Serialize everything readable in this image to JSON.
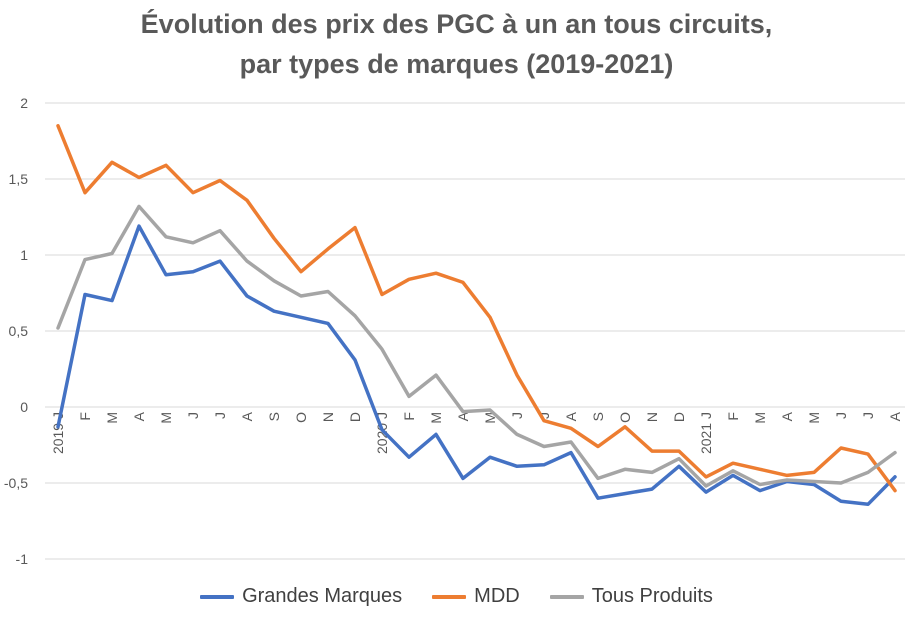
{
  "chart_data": {
    "type": "line",
    "title_line1": "Évolution des prix des PGC à un an tous circuits,",
    "title_line2": "par types de marques (2019-2021)",
    "categories": [
      "2019 J",
      "F",
      "M",
      "A",
      "M",
      "J",
      "J",
      "A",
      "S",
      "O",
      "N",
      "D",
      "2020 J",
      "F",
      "M",
      "A",
      "M",
      "J",
      "J",
      "A",
      "S",
      "O",
      "N",
      "D",
      "2021 J",
      "F",
      "M",
      "A",
      "M",
      "J",
      "J",
      "A"
    ],
    "ylim": [
      -1,
      2
    ],
    "yticks": [
      "-1",
      "-0,5",
      "0",
      "0,5",
      "1",
      "1,5",
      "2"
    ],
    "ytick_values": [
      -1,
      -0.5,
      0,
      0.5,
      1,
      1.5,
      2
    ],
    "grid": true,
    "legend_position": "bottom",
    "series": [
      {
        "name": "Grandes Marques",
        "color": "#4472C4",
        "values": [
          -0.13,
          0.74,
          0.7,
          1.19,
          0.87,
          0.89,
          0.96,
          0.73,
          0.63,
          0.59,
          0.55,
          0.31,
          -0.15,
          -0.33,
          -0.18,
          -0.47,
          -0.33,
          -0.39,
          -0.38,
          -0.3,
          -0.6,
          -0.57,
          -0.54,
          -0.39,
          -0.56,
          -0.45,
          -0.55,
          -0.49,
          -0.51,
          -0.62,
          -0.64,
          -0.46
        ]
      },
      {
        "name": "MDD",
        "color": "#ED7D31",
        "values": [
          1.85,
          1.41,
          1.61,
          1.51,
          1.59,
          1.41,
          1.49,
          1.36,
          1.11,
          0.89,
          1.04,
          1.18,
          0.74,
          0.84,
          0.88,
          0.82,
          0.59,
          0.21,
          -0.09,
          -0.14,
          -0.26,
          -0.13,
          -0.29,
          -0.29,
          -0.46,
          -0.37,
          -0.41,
          -0.45,
          -0.43,
          -0.27,
          -0.31,
          -0.55
        ]
      },
      {
        "name": "Tous Produits",
        "color": "#A5A5A5",
        "values": [
          0.52,
          0.97,
          1.01,
          1.32,
          1.12,
          1.08,
          1.16,
          0.96,
          0.83,
          0.73,
          0.76,
          0.6,
          0.38,
          0.07,
          0.21,
          -0.03,
          -0.02,
          -0.18,
          -0.26,
          -0.23,
          -0.47,
          -0.41,
          -0.43,
          -0.34,
          -0.52,
          -0.42,
          -0.51,
          -0.48,
          -0.49,
          -0.5,
          -0.43,
          -0.3
        ]
      }
    ]
  }
}
